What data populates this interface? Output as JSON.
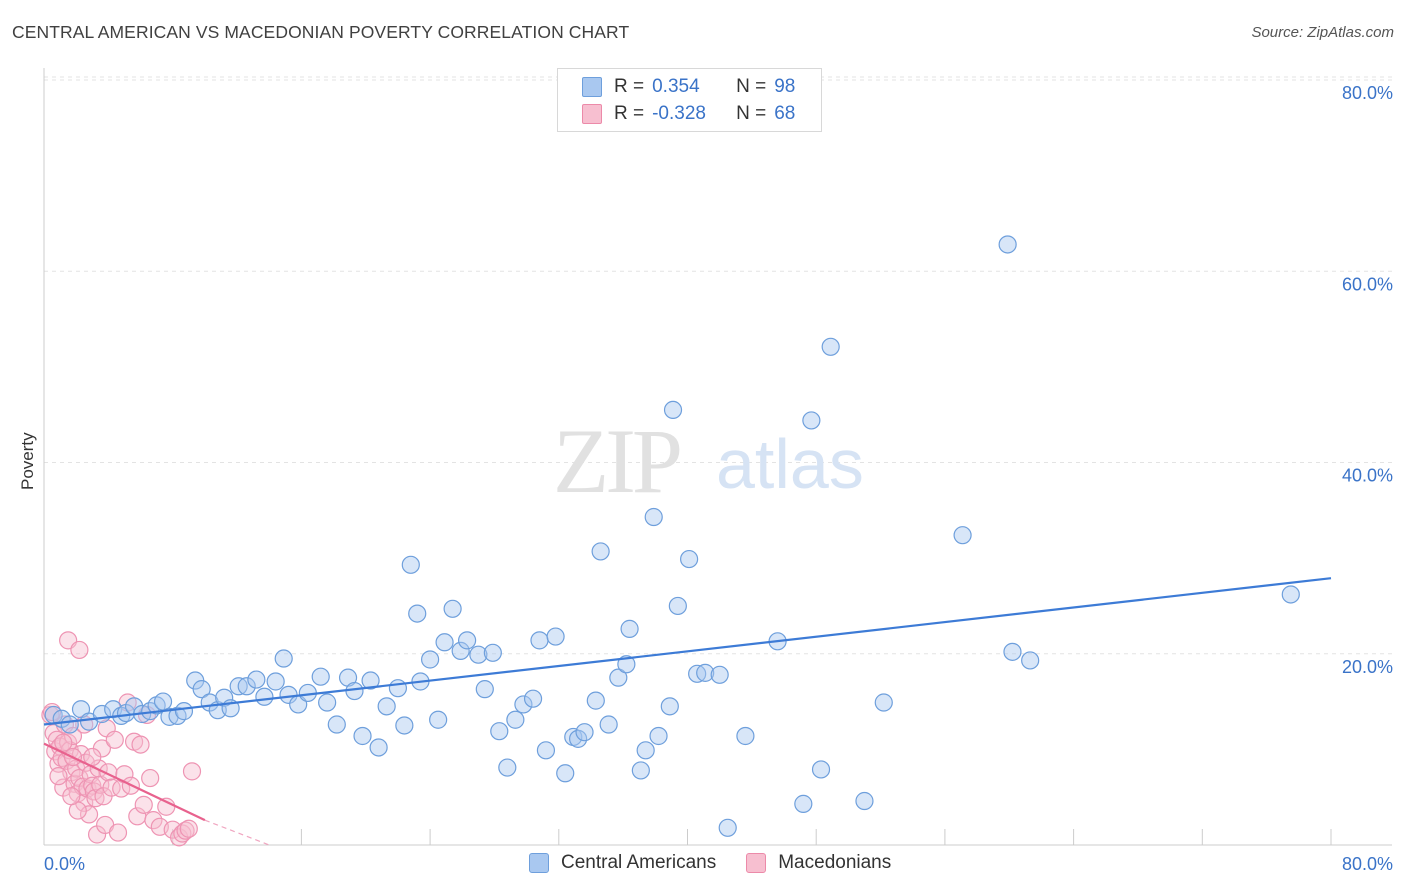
{
  "title": "CENTRAL AMERICAN VS MACEDONIAN POVERTY CORRELATION CHART",
  "source": "Source: ZipAtlas.com",
  "watermark": {
    "zip": "ZIP",
    "atlas": "atlas"
  },
  "legend": {
    "rows": [
      {
        "r_label": "R =",
        "r_value": "0.354",
        "n_label": "N =",
        "n_value": "98",
        "color": "#a9c8f0",
        "border": "#6e9fdc"
      },
      {
        "r_label": "R =",
        "r_value": "-0.328",
        "n_label": "N =",
        "n_value": "68",
        "color": "#f7bfd0",
        "border": "#ec8aa9"
      }
    ]
  },
  "bottom_legend": [
    {
      "label": "Central Americans",
      "color": "#a9c8f0",
      "border": "#6e9fdc"
    },
    {
      "label": "Macedonians",
      "color": "#f7bfd0",
      "border": "#ec8aa9"
    }
  ],
  "chart_data": {
    "type": "scatter",
    "title": "CENTRAL AMERICAN VS MACEDONIAN POVERTY CORRELATION CHART",
    "xlabel": "",
    "ylabel": "Poverty",
    "xlim": [
      0,
      80
    ],
    "ylim": [
      0,
      80
    ],
    "x_tick_labels": [
      "0.0%",
      "80.0%"
    ],
    "y_tick_labels": [
      "20.0%",
      "40.0%",
      "60.0%",
      "80.0%"
    ],
    "y_ticks": [
      20,
      40,
      60,
      80
    ],
    "grid": true,
    "legend_position": "top-center",
    "colors": {
      "central": "#3d7bd6",
      "central_fill": "rgba(169,200,240,0.45)",
      "macedonian": "#e8628e",
      "macedonian_fill": "rgba(247,191,208,0.45)"
    },
    "series": [
      {
        "name": "Central Americans",
        "trend": {
          "x": [
            0,
            80
          ],
          "y": [
            12.6,
            27.9
          ]
        },
        "points": [
          [
            0.6,
            13.6
          ],
          [
            1.1,
            13.2
          ],
          [
            1.6,
            12.6
          ],
          [
            2.3,
            14.2
          ],
          [
            2.8,
            12.9
          ],
          [
            3.6,
            13.7
          ],
          [
            4.3,
            14.2
          ],
          [
            4.8,
            13.5
          ],
          [
            5.1,
            13.8
          ],
          [
            5.6,
            14.5
          ],
          [
            6.1,
            13.7
          ],
          [
            6.6,
            14.0
          ],
          [
            7.0,
            14.6
          ],
          [
            7.4,
            15.0
          ],
          [
            7.8,
            13.4
          ],
          [
            8.3,
            13.5
          ],
          [
            8.7,
            14.0
          ],
          [
            9.4,
            17.2
          ],
          [
            9.8,
            16.3
          ],
          [
            10.3,
            14.9
          ],
          [
            10.8,
            14.1
          ],
          [
            11.2,
            15.4
          ],
          [
            11.6,
            14.3
          ],
          [
            12.1,
            16.6
          ],
          [
            12.6,
            16.6
          ],
          [
            13.2,
            17.3
          ],
          [
            13.7,
            15.5
          ],
          [
            14.4,
            17.1
          ],
          [
            14.9,
            19.5
          ],
          [
            15.2,
            15.7
          ],
          [
            15.8,
            14.7
          ],
          [
            16.4,
            15.9
          ],
          [
            17.2,
            17.6
          ],
          [
            17.6,
            14.9
          ],
          [
            18.2,
            12.6
          ],
          [
            18.9,
            17.5
          ],
          [
            19.3,
            16.1
          ],
          [
            19.8,
            11.4
          ],
          [
            20.3,
            17.2
          ],
          [
            20.8,
            10.2
          ],
          [
            21.3,
            14.5
          ],
          [
            22.0,
            16.4
          ],
          [
            22.4,
            12.5
          ],
          [
            22.8,
            29.3
          ],
          [
            23.2,
            24.2
          ],
          [
            23.4,
            17.1
          ],
          [
            24.0,
            19.4
          ],
          [
            24.5,
            13.1
          ],
          [
            24.9,
            21.2
          ],
          [
            25.4,
            24.7
          ],
          [
            25.9,
            20.3
          ],
          [
            26.3,
            21.4
          ],
          [
            27.0,
            19.9
          ],
          [
            27.4,
            16.3
          ],
          [
            27.9,
            20.1
          ],
          [
            28.3,
            11.9
          ],
          [
            28.8,
            8.1
          ],
          [
            29.3,
            13.1
          ],
          [
            29.8,
            14.7
          ],
          [
            30.4,
            15.3
          ],
          [
            30.8,
            21.4
          ],
          [
            31.2,
            9.9
          ],
          [
            31.8,
            21.8
          ],
          [
            32.4,
            7.5
          ],
          [
            32.9,
            11.3
          ],
          [
            33.2,
            11.1
          ],
          [
            33.6,
            11.8
          ],
          [
            34.3,
            15.1
          ],
          [
            34.6,
            30.7
          ],
          [
            35.1,
            12.6
          ],
          [
            35.7,
            17.5
          ],
          [
            36.2,
            18.9
          ],
          [
            36.4,
            22.6
          ],
          [
            37.1,
            7.8
          ],
          [
            37.4,
            9.9
          ],
          [
            37.9,
            34.3
          ],
          [
            38.2,
            11.4
          ],
          [
            38.9,
            14.5
          ],
          [
            39.1,
            45.5
          ],
          [
            39.4,
            25.0
          ],
          [
            40.1,
            29.9
          ],
          [
            40.6,
            17.9
          ],
          [
            41.1,
            18.0
          ],
          [
            42.5,
            1.8
          ],
          [
            43.6,
            11.4
          ],
          [
            45.6,
            21.3
          ],
          [
            47.2,
            4.3
          ],
          [
            47.7,
            44.4
          ],
          [
            48.3,
            7.9
          ],
          [
            48.9,
            52.1
          ],
          [
            51.0,
            4.6
          ],
          [
            52.2,
            14.9
          ],
          [
            57.1,
            32.4
          ],
          [
            59.9,
            62.8
          ],
          [
            60.2,
            20.2
          ],
          [
            61.3,
            19.3
          ],
          [
            77.5,
            26.2
          ],
          [
            42.0,
            17.8
          ]
        ]
      },
      {
        "name": "Macedonians",
        "trend": {
          "x": [
            0,
            10
          ],
          "y": [
            10.6,
            2.6
          ]
        },
        "trend_ext": {
          "x": [
            10,
            14
          ],
          "y": [
            2.6,
            0
          ]
        },
        "points": [
          [
            0.4,
            13.6
          ],
          [
            0.6,
            11.7
          ],
          [
            0.7,
            9.8
          ],
          [
            0.8,
            11.0
          ],
          [
            0.9,
            8.5
          ],
          [
            1.0,
            10.3
          ],
          [
            1.1,
            9.1
          ],
          [
            1.2,
            6.0
          ],
          [
            1.3,
            12.6
          ],
          [
            1.4,
            8.8
          ],
          [
            1.5,
            10.7
          ],
          [
            1.6,
            9.9
          ],
          [
            1.7,
            7.6
          ],
          [
            1.8,
            11.4
          ],
          [
            1.9,
            6.4
          ],
          [
            2.0,
            8.0
          ],
          [
            2.1,
            5.4
          ],
          [
            2.2,
            7.0
          ],
          [
            2.3,
            9.5
          ],
          [
            2.4,
            6.1
          ],
          [
            2.5,
            4.4
          ],
          [
            2.6,
            8.6
          ],
          [
            2.7,
            5.9
          ],
          [
            2.8,
            3.2
          ],
          [
            2.9,
            7.4
          ],
          [
            3.0,
            6.2
          ],
          [
            3.1,
            5.6
          ],
          [
            3.2,
            4.9
          ],
          [
            3.3,
            1.1
          ],
          [
            3.4,
            8.0
          ],
          [
            3.5,
            6.3
          ],
          [
            3.6,
            10.1
          ],
          [
            3.7,
            5.1
          ],
          [
            3.8,
            2.1
          ],
          [
            3.9,
            12.2
          ],
          [
            4.0,
            7.6
          ],
          [
            4.2,
            6.0
          ],
          [
            4.4,
            11.0
          ],
          [
            4.6,
            1.3
          ],
          [
            4.8,
            5.9
          ],
          [
            5.0,
            7.4
          ],
          [
            5.2,
            14.9
          ],
          [
            5.4,
            6.2
          ],
          [
            5.6,
            10.8
          ],
          [
            5.8,
            3.0
          ],
          [
            6.0,
            10.5
          ],
          [
            6.2,
            4.2
          ],
          [
            6.4,
            13.6
          ],
          [
            6.6,
            7.0
          ],
          [
            6.8,
            2.6
          ],
          [
            7.2,
            1.9
          ],
          [
            7.6,
            4.0
          ],
          [
            8.0,
            1.6
          ],
          [
            8.4,
            0.8
          ],
          [
            8.6,
            1.2
          ],
          [
            8.8,
            1.5
          ],
          [
            9.2,
            7.7
          ],
          [
            9.0,
            1.7
          ],
          [
            1.5,
            21.4
          ],
          [
            2.2,
            20.4
          ],
          [
            0.5,
            13.9
          ],
          [
            0.9,
            7.2
          ],
          [
            1.8,
            9.2
          ],
          [
            2.5,
            12.6
          ],
          [
            1.2,
            10.7
          ],
          [
            3.0,
            9.2
          ],
          [
            2.1,
            3.6
          ],
          [
            1.7,
            5.1
          ]
        ]
      }
    ]
  }
}
